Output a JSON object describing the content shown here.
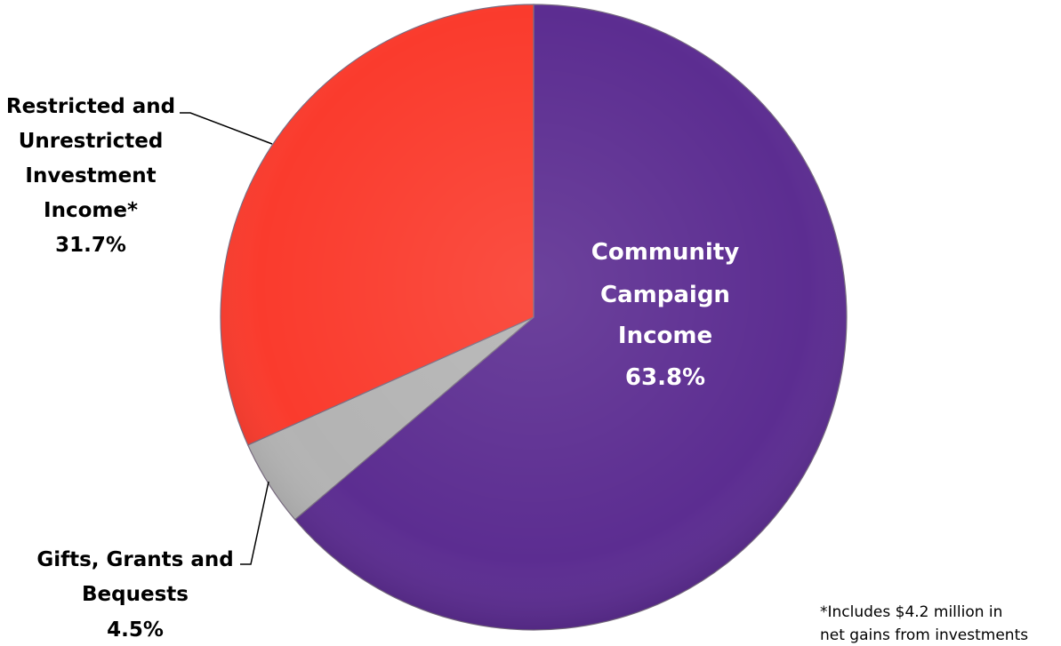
{
  "chart_data": {
    "type": "pie",
    "slices": [
      {
        "label": [
          "Community",
          "Campaign",
          "Income"
        ],
        "value": 63.8,
        "value_label": "63.8%",
        "color": "#5c2d91"
      },
      {
        "label": [
          "Gifts, Grants and",
          "Bequests"
        ],
        "value": 4.5,
        "value_label": "4.5%",
        "color": "#b3b3b3"
      },
      {
        "label": [
          "Restricted and",
          "Unrestricted",
          "Investment",
          "Income*"
        ],
        "value": 31.7,
        "value_label": "31.7%",
        "color": "#fa3b2d"
      }
    ],
    "start_angle_deg": 0,
    "direction": "clockwise"
  },
  "footnote": [
    "*Includes $4.2 million in",
    "net gains from investments"
  ]
}
